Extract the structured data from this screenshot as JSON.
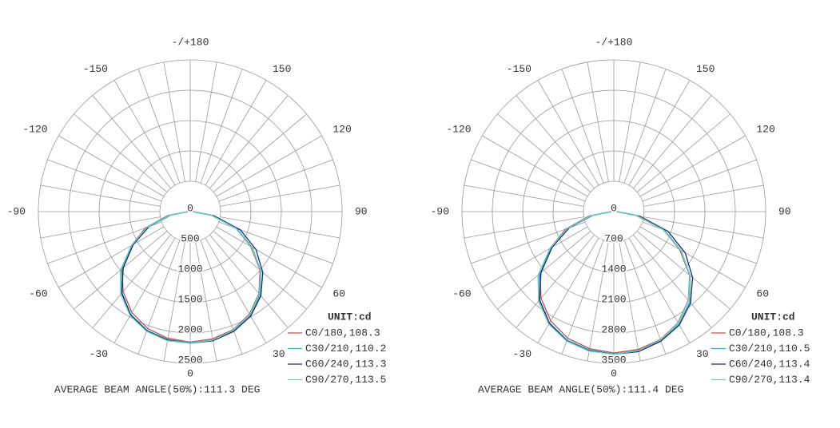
{
  "chart_data": [
    {
      "type": "polar",
      "theta": [
        -90,
        -80,
        -70,
        -60,
        -50,
        -40,
        -30,
        -20,
        -10,
        0,
        10,
        20,
        30,
        40,
        50,
        60,
        70,
        80,
        90
      ],
      "rlim": [
        0,
        2500
      ],
      "rticks": [
        0,
        500,
        1000,
        1500,
        2000,
        2500
      ],
      "thetaticks": [
        -150,
        -120,
        -90,
        -60,
        -30,
        0,
        30,
        60,
        90,
        120,
        150,
        {
          "value": 180,
          "label": "-/+180"
        }
      ],
      "legend_title": "UNIT:cd",
      "annotation": "AVERAGE BEAM ANGLE(50%):111.3 DEG",
      "series": [
        {
          "name": "C0/180,108.3",
          "color": "#c0504d",
          "values": [
            40,
            380,
            780,
            1120,
            1460,
            1720,
            1920,
            2050,
            2120,
            2150,
            2130,
            2070,
            1950,
            1760,
            1500,
            1150,
            800,
            350,
            40
          ]
        },
        {
          "name": "C30/210,110.2",
          "color": "#4bacc6",
          "values": [
            30,
            360,
            760,
            1100,
            1480,
            1760,
            1960,
            2080,
            2140,
            2160,
            2150,
            2090,
            1980,
            1790,
            1520,
            1180,
            820,
            370,
            40
          ]
        },
        {
          "name": "C60/240,113.3",
          "color": "#1f2a6b",
          "values": [
            40,
            320,
            720,
            1080,
            1440,
            1750,
            1960,
            2090,
            2150,
            2170,
            2160,
            2100,
            1990,
            1810,
            1560,
            1250,
            880,
            400,
            50
          ]
        },
        {
          "name": "C90/270,113.5",
          "color": "#5fd3c8",
          "values": [
            40,
            340,
            750,
            1120,
            1500,
            1780,
            1980,
            2100,
            2160,
            2170,
            2150,
            2080,
            1960,
            1770,
            1510,
            1170,
            800,
            360,
            40
          ]
        }
      ]
    },
    {
      "type": "polar",
      "theta": [
        -90,
        -80,
        -70,
        -60,
        -50,
        -40,
        -30,
        -20,
        -10,
        0,
        10,
        20,
        30,
        40,
        50,
        60,
        70,
        80,
        90
      ],
      "rlim": [
        0,
        3500
      ],
      "rticks": [
        0,
        700,
        1400,
        2100,
        2800,
        3500
      ],
      "thetaticks": [
        -150,
        -120,
        -90,
        -60,
        -30,
        0,
        30,
        60,
        90,
        120,
        150,
        {
          "value": 180,
          "label": "-/+180"
        }
      ],
      "legend_title": "UNIT:cd",
      "annotation": "AVERAGE BEAM ANGLE(50%):111.4 DEG",
      "series": [
        {
          "name": "C0/180,108.3",
          "color": "#c0504d",
          "values": [
            60,
            580,
            1180,
            1700,
            2220,
            2610,
            2910,
            3110,
            3210,
            3260,
            3230,
            3140,
            2960,
            2670,
            2280,
            1750,
            1210,
            530,
            60
          ]
        },
        {
          "name": "C30/210,110.5",
          "color": "#4bacc6",
          "values": [
            50,
            550,
            1150,
            1670,
            2250,
            2670,
            2970,
            3150,
            3240,
            3280,
            3260,
            3170,
            3000,
            2720,
            2300,
            1790,
            1240,
            560,
            60
          ]
        },
        {
          "name": "C60/240,113.4",
          "color": "#1f2a6b",
          "values": [
            60,
            490,
            1090,
            1640,
            2190,
            2660,
            2970,
            3170,
            3260,
            3290,
            3280,
            3180,
            3020,
            2750,
            2370,
            1900,
            1330,
            610,
            80
          ]
        },
        {
          "name": "C90/270,113.4",
          "color": "#5fd3c8",
          "values": [
            60,
            520,
            1140,
            1700,
            2280,
            2700,
            3000,
            3180,
            3270,
            3290,
            3260,
            3150,
            2970,
            2680,
            2290,
            1780,
            1210,
            550,
            60
          ]
        }
      ]
    }
  ]
}
